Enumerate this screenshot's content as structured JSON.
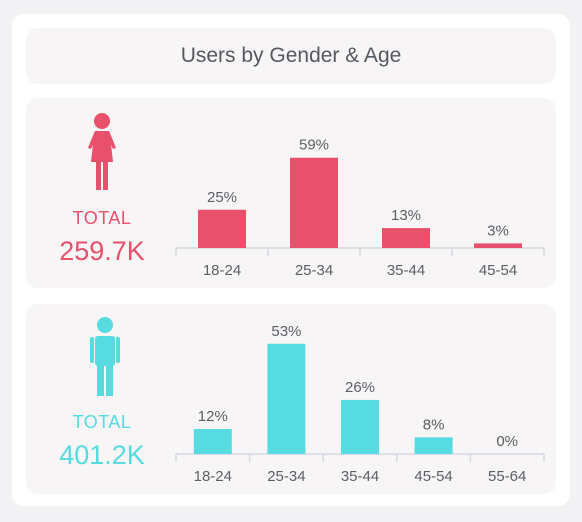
{
  "title": "Users by Gender & Age",
  "female": {
    "icon": "female-icon",
    "color": "#e8506c",
    "total_label": "TOTAL",
    "total_value": "259.7K"
  },
  "male": {
    "icon": "male-icon",
    "color": "#56dbe0",
    "total_label": "TOTAL",
    "total_value": "401.2K"
  },
  "chart_data": [
    {
      "type": "bar",
      "categories": [
        "18-24",
        "25-34",
        "35-44",
        "45-54"
      ],
      "values": [
        25,
        59,
        13,
        3
      ],
      "value_labels": [
        "25%",
        "59%",
        "13%",
        "3%"
      ],
      "color": "#e8506c"
    },
    {
      "type": "bar",
      "categories": [
        "18-24",
        "25-34",
        "35-44",
        "45-54",
        "55-64"
      ],
      "values": [
        12,
        53,
        26,
        8,
        0
      ],
      "value_labels": [
        "12%",
        "53%",
        "26%",
        "8%",
        "0%"
      ],
      "color": "#56dbe0"
    }
  ]
}
